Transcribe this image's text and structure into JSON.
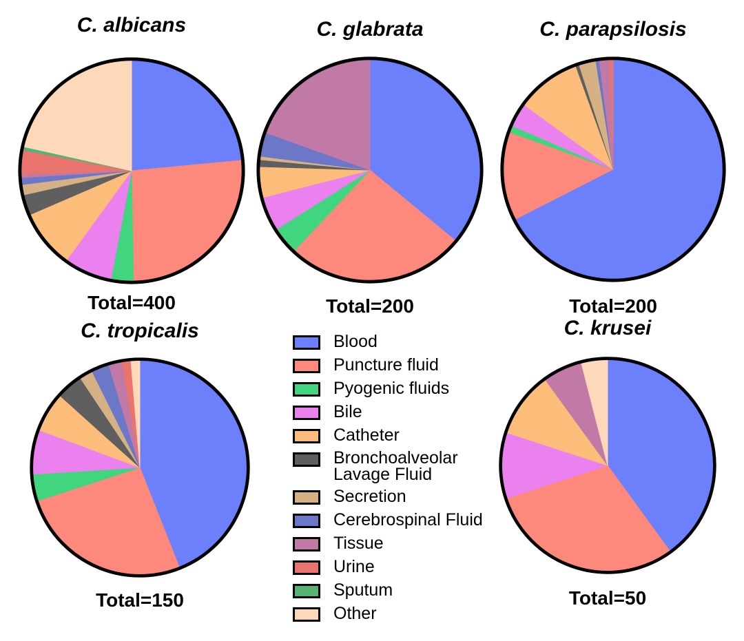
{
  "figure": {
    "background": "#ffffff",
    "outline_color": "#000000",
    "categories": [
      {
        "label": "Blood",
        "color": "#6d80fb"
      },
      {
        "label": "Puncture fluid",
        "color": "#fc897b"
      },
      {
        "label": "Pyogenic fluids",
        "color": "#41d57f"
      },
      {
        "label": "Bile",
        "color": "#eb81ef"
      },
      {
        "label": "Catheter",
        "color": "#fcbd7a"
      },
      {
        "label": "Bronchoalveolar Lavage Fluid",
        "label_lines": [
          "Bronchoalveolar",
          "Lavage Fluid"
        ],
        "color": "#5f5f5f"
      },
      {
        "label": "Secretion",
        "color": "#d5b183"
      },
      {
        "label": "Cerebrospinal Fluid",
        "color": "#6c77c8"
      },
      {
        "label": "Tissue",
        "color": "#c07aa5"
      },
      {
        "label": "Urine",
        "color": "#e8746d"
      },
      {
        "label": "Sputum",
        "color": "#57b373"
      },
      {
        "label": "Other",
        "color": "#fed9b9"
      }
    ],
    "legend_position": "bottom-center"
  },
  "chart_data": [
    {
      "type": "pie",
      "title": "C. albicans",
      "total_label": "Total=400",
      "total": 400,
      "start": "12 o'clock",
      "direction": "clockwise",
      "labels": [
        "Blood",
        "Puncture fluid",
        "Pyogenic fluids",
        "Bile",
        "Catheter",
        "Bronchoalveolar Lavage Fluid",
        "Secretion",
        "Cerebrospinal Fluid",
        "Tissue",
        "Urine",
        "Sputum",
        "Other"
      ],
      "values": [
        94,
        105,
        13,
        28,
        34,
        12,
        6,
        4,
        2,
        14,
        2,
        86
      ]
    },
    {
      "type": "pie",
      "title": "C. glabrata",
      "total_label": "Total=200",
      "total": 200,
      "start": "12 o'clock",
      "direction": "clockwise",
      "labels": [
        "Blood",
        "Puncture fluid",
        "Pyogenic fluids",
        "Bile",
        "Catheter",
        "Bronchoalveolar Lavage Fluid",
        "Secretion",
        "Cerebrospinal Fluid",
        "Tissue",
        "Urine",
        "Sputum",
        "Other"
      ],
      "values": [
        72,
        52,
        8,
        10,
        9,
        2,
        1,
        7,
        39,
        0,
        0,
        0
      ]
    },
    {
      "type": "pie",
      "title": "C. parapsilosis",
      "total_label": "Total=200",
      "total": 200,
      "start": "12 o'clock",
      "direction": "clockwise",
      "labels": [
        "Blood",
        "Puncture fluid",
        "Pyogenic fluids",
        "Bile",
        "Catheter",
        "Bronchoalveolar Lavage Fluid",
        "Secretion",
        "Cerebrospinal Fluid",
        "Tissue",
        "Urine",
        "Sputum",
        "Other"
      ],
      "values": [
        135,
        26,
        2,
        7,
        19,
        1,
        5,
        1,
        3,
        1,
        0,
        0
      ]
    },
    {
      "type": "pie",
      "title": "C. tropicalis",
      "total_label": "Total=150",
      "total": 150,
      "start": "12 o'clock",
      "direction": "clockwise",
      "labels": [
        "Blood",
        "Puncture fluid",
        "Pyogenic fluids",
        "Bile",
        "Catheter",
        "Bronchoalveolar Lavage Fluid",
        "Secretion",
        "Cerebrospinal Fluid",
        "Tissue",
        "Urine",
        "Sputum",
        "Other"
      ],
      "values": [
        66,
        39,
        6,
        10,
        9,
        6,
        3,
        4,
        3,
        2,
        0,
        2
      ]
    },
    {
      "type": "pie",
      "title": "C. krusei",
      "total_label": "Total=50",
      "total": 50,
      "start": "12 o'clock",
      "direction": "clockwise",
      "labels": [
        "Blood",
        "Puncture fluid",
        "Pyogenic fluids",
        "Bile",
        "Catheter",
        "Bronchoalveolar Lavage Fluid",
        "Secretion",
        "Cerebrospinal Fluid",
        "Tissue",
        "Urine",
        "Sputum",
        "Other"
      ],
      "values": [
        20,
        15,
        0,
        5,
        5,
        0,
        0,
        0,
        3,
        0,
        0,
        2
      ]
    }
  ]
}
